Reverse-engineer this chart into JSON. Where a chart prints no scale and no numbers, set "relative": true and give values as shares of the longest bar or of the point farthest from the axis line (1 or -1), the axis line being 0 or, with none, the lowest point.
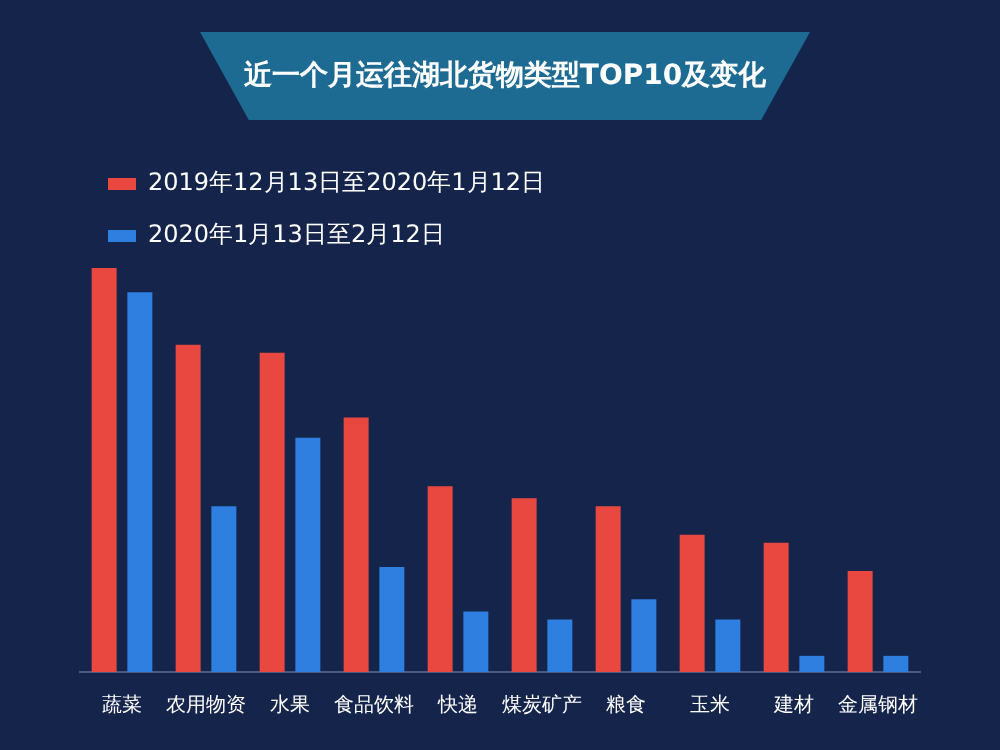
{
  "chart_data": {
    "type": "bar",
    "title": "近一个月运往湖北货物类型TOP10及变化",
    "relative": true,
    "legend": "top left",
    "grid": false,
    "categories": [
      "蔬菜",
      "农用物资",
      "水果",
      "食品饮料",
      "快递",
      "煤炭矿产",
      "粮食",
      "玉米",
      "建材",
      "金属钢材"
    ],
    "series": [
      {
        "name": "2019年12月13日至2020年1月12日",
        "color": "#e8483f",
        "values": [
          1,
          0.81,
          0.79,
          0.63,
          0.46,
          0.43,
          0.41,
          0.34,
          0.32,
          0.25
        ]
      },
      {
        "name": "2020年1月13日至2月12日",
        "color": "#2f7fe0",
        "values": [
          0.94,
          0.41,
          0.58,
          0.26,
          0.15,
          0.13,
          0.18,
          0.13,
          0.04,
          0.04
        ]
      }
    ]
  }
}
